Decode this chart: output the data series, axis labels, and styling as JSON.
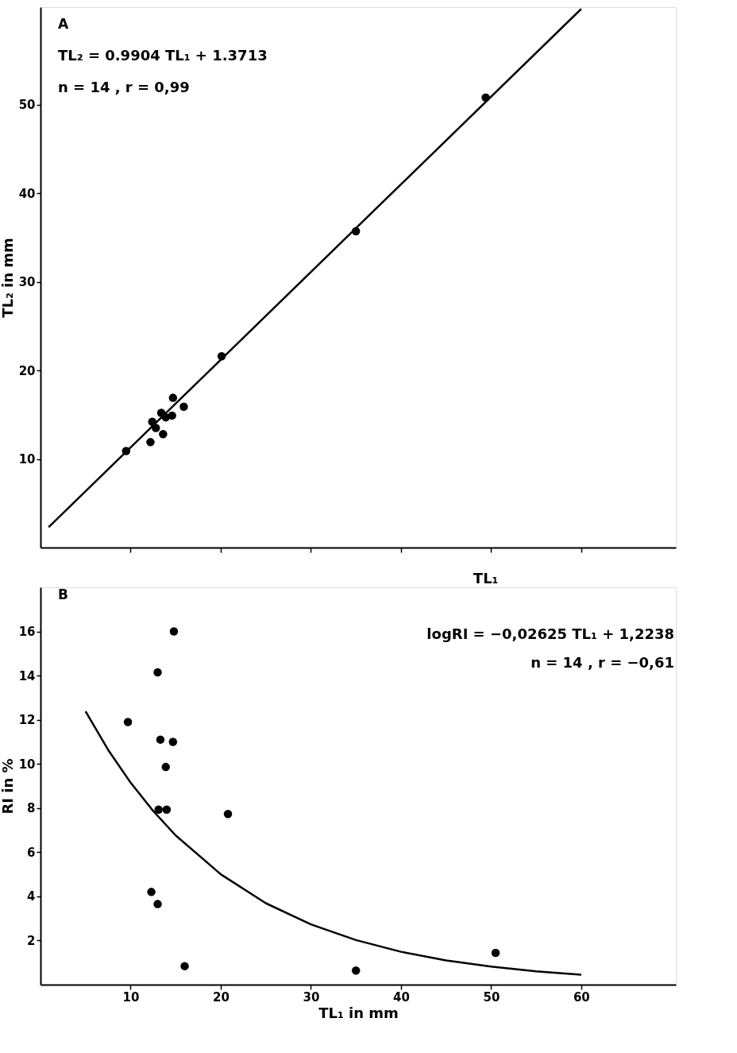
{
  "chart_data": [
    {
      "type": "scatter",
      "xlabel": "TL₁",
      "ylabel": "TL₂ in mm",
      "xlim": [
        0,
        70.5
      ],
      "ylim": [
        0,
        61
      ],
      "grid": false,
      "tick_labels": "y",
      "xticks": [
        {
          "value": 10,
          "label": null
        },
        {
          "value": 20,
          "label": null
        },
        {
          "value": 30,
          "label": null
        },
        {
          "value": 40,
          "label": null
        },
        {
          "value": 50,
          "label": null
        },
        {
          "value": 60,
          "label": null
        }
      ],
      "yticks": [
        10,
        20,
        30,
        40,
        50
      ],
      "annotations": [
        "A",
        "TL₂ = 0.9904 TL₁ + 1.3713",
        "n = 14 ,  r = 0,99"
      ],
      "series": [
        {
          "marker": "circle",
          "color": "#000000",
          "x": [
            9.5,
            12.2,
            12.4,
            12.8,
            13.6,
            13.4,
            13.9,
            14.6,
            14.7,
            15.9,
            20.1,
            35.0,
            49.4
          ],
          "values": [
            10.9,
            11.9,
            14.2,
            13.5,
            12.8,
            15.2,
            14.7,
            14.9,
            16.9,
            15.9,
            21.6,
            35.7,
            50.8
          ]
        },
        {
          "type": "line",
          "marker": "none",
          "line_style": "solid",
          "color": "#000000",
          "x": [
            0.9,
            60
          ],
          "values": [
            2.3,
            60.8
          ]
        }
      ]
    },
    {
      "type": "scatter",
      "xlabel": "TL₁ in mm",
      "ylabel": "RI in %",
      "xlim": [
        0,
        70.5
      ],
      "ylim": [
        0,
        18
      ],
      "grid": false,
      "xticks": [
        10,
        20,
        30,
        40,
        50,
        60
      ],
      "yticks": [
        2,
        4,
        6,
        8,
        10,
        12,
        14,
        16
      ],
      "annotations": [
        "B",
        "logRI = −0,02625 TL₁ + 1,2238",
        "n = 14 ,  r = −0,61"
      ],
      "series": [
        {
          "marker": "circle",
          "color": "#000000",
          "x": [
            14.8,
            13.0,
            9.7,
            13.3,
            14.7,
            13.9,
            13.1,
            14.0,
            20.8,
            12.3,
            13.0,
            16.0,
            35.0,
            50.5
          ],
          "values": [
            16.0,
            14.15,
            11.9,
            11.1,
            11.0,
            9.86,
            7.93,
            7.93,
            7.73,
            4.2,
            3.65,
            0.84,
            0.64,
            1.44
          ]
        },
        {
          "type": "line",
          "marker": "none",
          "line_style": "solid",
          "color": "#000000",
          "x": [
            5,
            7.5,
            10,
            12.5,
            15,
            20,
            25,
            30,
            35,
            40,
            45,
            50,
            55,
            60
          ],
          "values": [
            12.38,
            10.64,
            9.15,
            7.87,
            6.76,
            5.0,
            3.69,
            2.73,
            2.02,
            1.49,
            1.1,
            0.82,
            0.6,
            0.45
          ]
        }
      ]
    }
  ]
}
